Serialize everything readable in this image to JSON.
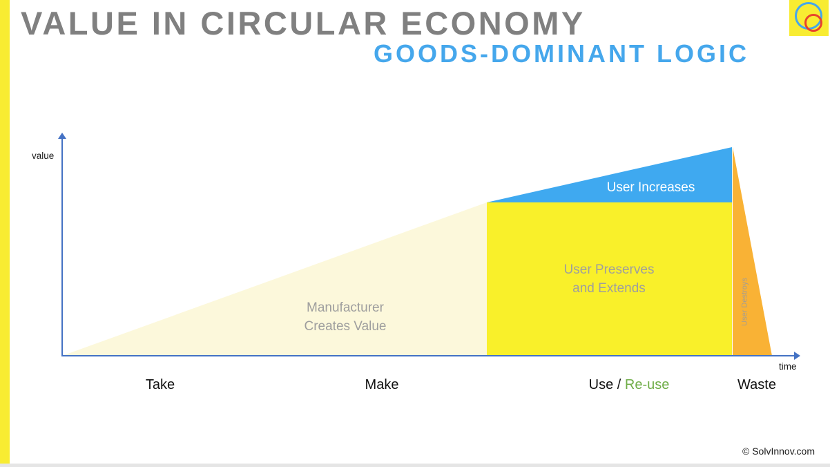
{
  "header": {
    "title": "VALUE IN CIRCULAR ECONOMY",
    "subtitle": "GOODS-DOMINANT LOGIC"
  },
  "logo": {
    "description": "yellow square with blue circle outline and overlapping red circle outline",
    "background": "#F8EC32",
    "circle_colors": [
      "#45A7EC",
      "#E8432C"
    ]
  },
  "chart_data": {
    "type": "area",
    "title": "Value in Circular Economy — Goods-Dominant Logic",
    "xlabel": "time",
    "ylabel": "value",
    "axis_color": "#4472C4",
    "grid": false,
    "phases": [
      {
        "label": "Take"
      },
      {
        "label": "Make"
      },
      {
        "parts": [
          {
            "text": "Use / ",
            "color": "#111111"
          },
          {
            "text": "Re-use",
            "color": "#6FAD47"
          }
        ]
      },
      {
        "label": "Waste"
      }
    ],
    "segments": [
      {
        "name": "manufacturer-creates-value",
        "label_line1": "Manufacturer",
        "label_line2": "Creates Value",
        "shape": "rising right triangle",
        "phase_span": "Take through Make",
        "color": "#FCF8DB",
        "relative_value": "rises 0 to 0.73"
      },
      {
        "name": "user-preserves-and-extends",
        "label_line1": "User Preserves",
        "label_line2": "and Extends",
        "shape": "rectangle",
        "phase_span": "Use / Re-use",
        "color": "#F9F02A",
        "relative_value": "held at 0.73"
      },
      {
        "name": "user-increases",
        "label": "User Increases",
        "shape": "rising right triangle above rectangle",
        "phase_span": "Use / Re-use",
        "color": "#3FA9F0",
        "relative_value": "rises 0.73 to 1.0"
      },
      {
        "name": "user-destroys",
        "label": "User Destroys",
        "shape": "narrow falling triangle",
        "phase_span": "Waste",
        "color": "#F9B235",
        "relative_value": "collapses 1.0 to 0"
      }
    ]
  },
  "footer": {
    "copyright": "© SolvInnov.com"
  }
}
